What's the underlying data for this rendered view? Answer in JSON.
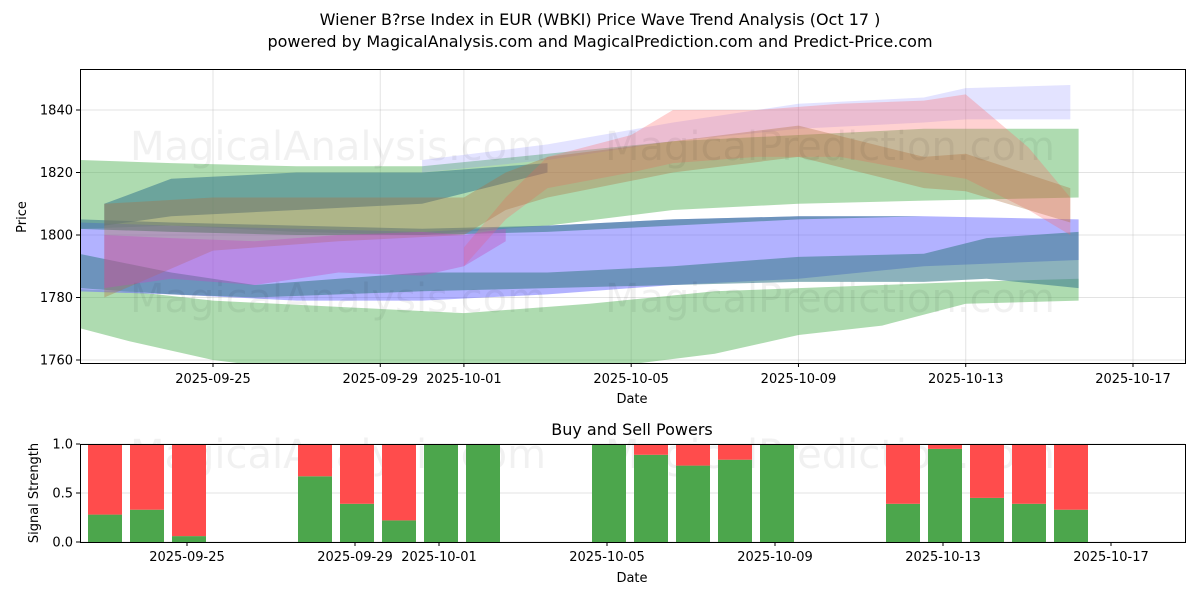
{
  "header": {
    "title": "Wiener B?rse Index in EUR (WBKI) Price Wave Trend Analysis (Oct 17 )",
    "subtitle": "powered by MagicalAnalysis.com and MagicalPrediction.com and Predict-Price.com"
  },
  "watermarks": [
    "MagicalAnalysis.com",
    "MagicalPrediction.com"
  ],
  "colors": {
    "buy": "#4ca64c",
    "sell": "#ff4c4c",
    "green_band": "#4caf50",
    "blue_band": "#6666ff",
    "teal_band": "#3f7f8f",
    "red_band": "#ff6666",
    "purple_band": "#c050c0",
    "brown_band": "#b07040"
  },
  "chart_data": [
    {
      "type": "area",
      "title": "",
      "xlabel": "Date",
      "ylabel": "Price",
      "ylim": [
        1759,
        1853
      ],
      "yticks": [
        1760,
        1780,
        1800,
        1820,
        1840
      ],
      "xticks": [
        "2025-09-25",
        "2025-09-29",
        "2025-10-01",
        "2025-10-05",
        "2025-10-09",
        "2025-10-13",
        "2025-10-17"
      ],
      "xrange": [
        "2025-09-21",
        "2025-10-18"
      ],
      "grid": true,
      "series": [
        {
          "name": "green-wide-upper",
          "color": "green",
          "x": [
            0.8,
            3,
            6,
            9,
            12,
            15,
            18,
            21,
            24.7
          ],
          "lower": [
            1802,
            1803,
            1801,
            1800,
            1803,
            1808,
            1810,
            1811,
            1812
          ],
          "upper": [
            1824,
            1823,
            1822,
            1822,
            1826,
            1830,
            1832,
            1834,
            1834
          ]
        },
        {
          "name": "green-wide-lower",
          "color": "green",
          "x": [
            0.3,
            2,
            4,
            7,
            10,
            13,
            16,
            18,
            20,
            22,
            24.7
          ],
          "lower": [
            1772,
            1766,
            1760,
            1755,
            1752,
            1757,
            1762,
            1768,
            1771,
            1778,
            1779
          ],
          "upper": [
            1783,
            1782,
            1779,
            1777,
            1775,
            1778,
            1782,
            1783,
            1784,
            1785,
            1786
          ]
        },
        {
          "name": "blue-wide",
          "color": "blue",
          "x": [
            0.8,
            3,
            6,
            9,
            12,
            15,
            18,
            21,
            24.7
          ],
          "lower": [
            1782,
            1781,
            1779,
            1779,
            1781,
            1784,
            1786,
            1790,
            1792
          ],
          "upper": [
            1804,
            1803,
            1802,
            1801,
            1803,
            1805,
            1806,
            1806,
            1805
          ]
        },
        {
          "name": "teal-band",
          "color": "teal",
          "x": [
            0.8,
            3,
            5,
            7,
            9,
            12,
            15,
            18,
            21,
            22.5,
            24.7
          ],
          "lower": [
            1783,
            1781,
            1780,
            1781,
            1782,
            1783,
            1784,
            1785,
            1785,
            1786,
            1783
          ],
          "upper": [
            1794,
            1788,
            1784,
            1786,
            1788,
            1788,
            1790,
            1793,
            1794,
            1799,
            1801
          ]
        },
        {
          "name": "teal-thin",
          "color": "teal",
          "x": [
            0.8,
            3,
            6,
            9,
            12,
            15,
            18,
            21,
            24.7
          ],
          "lower": [
            1802,
            1801,
            1800,
            1800,
            1801,
            1803,
            1805,
            1806,
            1805
          ],
          "upper": [
            1805,
            1804,
            1803,
            1802,
            1803,
            1805,
            1806,
            1806,
            1805
          ]
        },
        {
          "name": "teal-upper",
          "color": "teal",
          "x": [
            1.4,
            3,
            6,
            9,
            12
          ],
          "lower": [
            1803,
            1806,
            1808,
            1810,
            1820
          ],
          "upper": [
            1810,
            1818,
            1820,
            1820,
            1823
          ]
        },
        {
          "name": "lavender-top",
          "color": "lavender",
          "x": [
            9,
            12,
            15,
            18,
            21,
            22,
            24.5
          ],
          "lower": [
            1820,
            1824,
            1830,
            1834,
            1836,
            1837,
            1837
          ],
          "upper": [
            1824,
            1829,
            1836,
            1842,
            1844,
            1847,
            1848
          ]
        },
        {
          "name": "red-rise",
          "color": "red",
          "x": [
            10,
            11,
            12,
            14,
            15,
            17,
            19,
            21,
            22,
            23.5,
            24.5
          ],
          "lower": [
            1790,
            1805,
            1815,
            1820,
            1823,
            1825,
            1825,
            1820,
            1818,
            1808,
            1800
          ],
          "upper": [
            1796,
            1812,
            1825,
            1832,
            1840,
            1840,
            1842,
            1843,
            1845,
            1828,
            1812
          ]
        },
        {
          "name": "brown-rise",
          "color": "brown",
          "x": [
            1.4,
            4,
            7,
            10,
            11,
            12,
            15,
            18,
            21,
            22,
            24.5
          ],
          "lower": [
            1780,
            1795,
            1798,
            1800,
            1808,
            1812,
            1820,
            1825,
            1815,
            1814,
            1804
          ],
          "upper": [
            1810,
            1812,
            1812,
            1812,
            1820,
            1825,
            1830,
            1835,
            1825,
            1826,
            1815
          ]
        },
        {
          "name": "purple-low",
          "color": "purple",
          "x": [
            1.4,
            3,
            5,
            7,
            9,
            10,
            11
          ],
          "lower": [
            1783,
            1786,
            1784,
            1788,
            1787,
            1790,
            1798
          ],
          "upper": [
            1800,
            1799,
            1798,
            1800,
            1801,
            1800,
            1802
          ]
        }
      ]
    },
    {
      "type": "bar",
      "title": "Buy and Sell Powers",
      "xlabel": "Date",
      "ylabel": "Signal Strength",
      "ylim": [
        0,
        1
      ],
      "yticks": [
        "0.0",
        "0.5",
        "1.0"
      ],
      "xticks": [
        "2025-09-25",
        "2025-09-29",
        "2025-10-01",
        "2025-10-05",
        "2025-10-09",
        "2025-10-13",
        "2025-10-17"
      ],
      "grid": true,
      "categories": [
        "2025-09-24",
        "2025-09-25",
        "2025-09-26",
        "2025-09-29",
        "2025-09-30",
        "2025-10-01",
        "2025-10-02",
        "2025-10-03",
        "2025-10-06",
        "2025-10-07",
        "2025-10-08",
        "2025-10-09",
        "2025-10-10",
        "2025-10-13",
        "2025-10-14",
        "2025-10-15",
        "2025-10-16",
        "2025-10-17"
      ],
      "series": [
        {
          "name": "Buy",
          "color": "#4ca64c",
          "values": [
            0.28,
            0.33,
            0.06,
            0.67,
            0.39,
            0.22,
            1.0,
            1.0,
            1.0,
            0.89,
            0.78,
            0.84,
            1.0,
            0.39,
            0.95,
            0.45,
            0.39,
            0.33
          ]
        },
        {
          "name": "Sell",
          "color": "#ff4c4c",
          "values": [
            0.72,
            0.67,
            0.94,
            0.33,
            0.61,
            0.78,
            0.0,
            0.0,
            0.0,
            0.11,
            0.22,
            0.16,
            0.0,
            0.61,
            0.05,
            0.55,
            0.61,
            0.67
          ]
        }
      ]
    }
  ]
}
